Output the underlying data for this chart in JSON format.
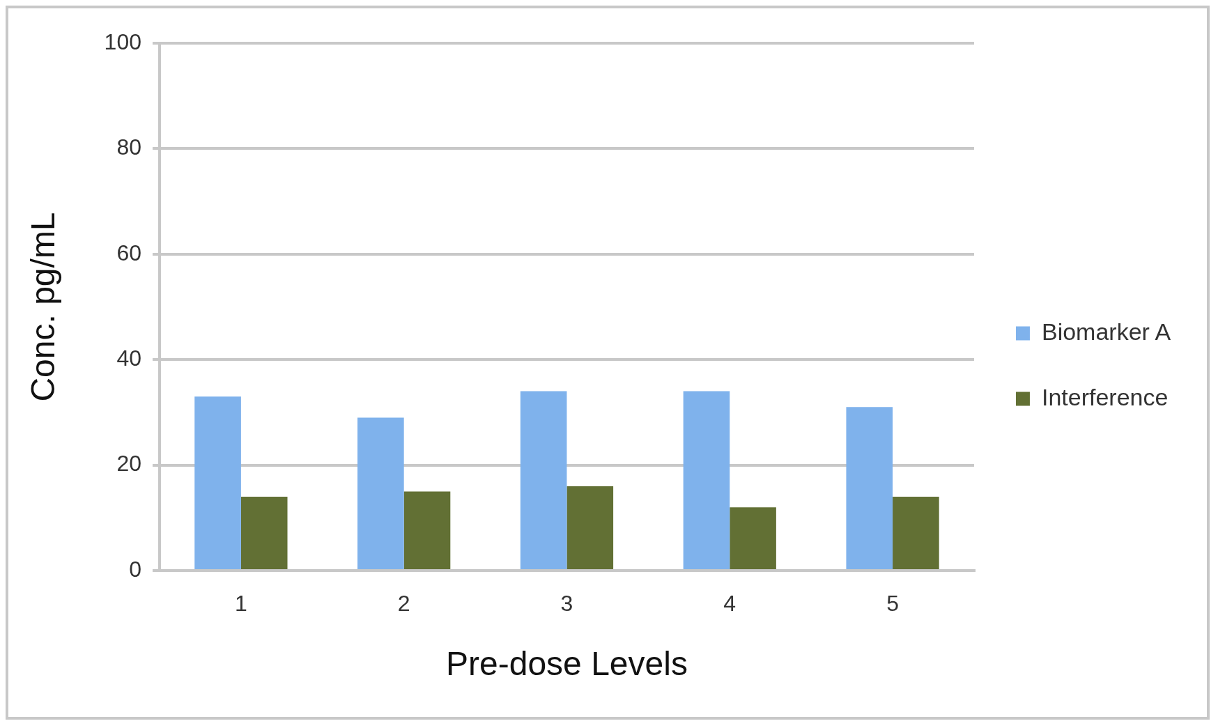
{
  "chart_data": {
    "type": "bar",
    "xlabel": "Pre-dose Levels",
    "ylabel": "Conc. pg/mL",
    "categories": [
      "1",
      "2",
      "3",
      "4",
      "5"
    ],
    "series": [
      {
        "name": "Biomarker A",
        "color": "#7fb2ec",
        "values": [
          33,
          29,
          34,
          34,
          31
        ]
      },
      {
        "name": "Interference",
        "color": "#627034",
        "values": [
          14,
          15,
          16,
          12,
          14
        ]
      }
    ],
    "ylim": [
      0,
      100
    ],
    "yticks": [
      0,
      20,
      40,
      60,
      80,
      100
    ],
    "grid": "y",
    "legend": "right"
  }
}
